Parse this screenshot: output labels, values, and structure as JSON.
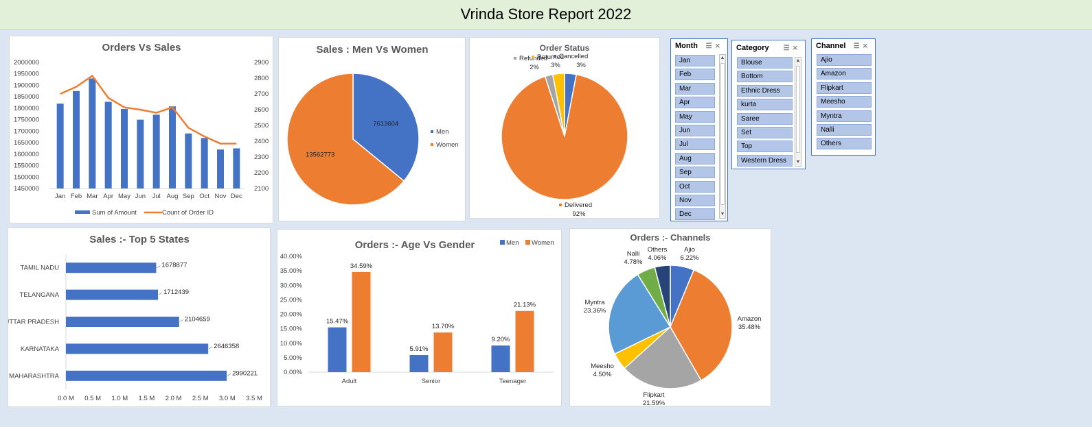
{
  "report_title": "Vrinda Store Report 2022",
  "chart_data": [
    {
      "id": "orders-vs-sales",
      "type": "bar+line",
      "title": "Orders Vs Sales",
      "categories": [
        "Jan",
        "Feb",
        "Mar",
        "Apr",
        "May",
        "Jun",
        "Jul",
        "Aug",
        "Sep",
        "Oct",
        "Nov",
        "Dec"
      ],
      "series": [
        {
          "name": "Sum of Amount",
          "type": "bar",
          "axis": "left",
          "color": "#4472c4",
          "values": [
            1820000,
            1875000,
            1930000,
            1828000,
            1797000,
            1750000,
            1772000,
            1808000,
            1690000,
            1670000,
            1620000,
            1625000
          ]
        },
        {
          "name": "Count of Order ID",
          "type": "line",
          "axis": "right",
          "color": "#ed7d31",
          "values": [
            2700,
            2745,
            2815,
            2675,
            2615,
            2600,
            2580,
            2615,
            2485,
            2430,
            2385,
            2385
          ]
        }
      ],
      "yticks_left": [
        "2000000",
        "1950000",
        "1900000",
        "1850000",
        "1800000",
        "1750000",
        "1700000",
        "1650000",
        "1600000",
        "1550000",
        "1500000",
        "1450000"
      ],
      "yticks_right": [
        "2900",
        "2800",
        "2700",
        "2600",
        "2500",
        "2400",
        "2300",
        "2200",
        "2100"
      ],
      "ylim_left": [
        1450000,
        2000000
      ],
      "ylim_right": [
        2100,
        2900
      ],
      "legend": "bottom"
    },
    {
      "id": "sales-men-women",
      "type": "pie",
      "title": "Sales : Men Vs Women",
      "slices": [
        {
          "name": "Men",
          "value": 7613604,
          "label": "7613604",
          "color": "#4472c4"
        },
        {
          "name": "Women",
          "value": 13562773,
          "label": "13562773",
          "color": "#ed7d31"
        }
      ],
      "legend": "right"
    },
    {
      "id": "order-status",
      "type": "pie",
      "title": "Order Status",
      "slices": [
        {
          "name": "Cancelled",
          "value": 3,
          "label": "3%",
          "color": "#4472c4"
        },
        {
          "name": "Delivered",
          "value": 92,
          "label": "92%",
          "color": "#ed7d31"
        },
        {
          "name": "Refunded",
          "value": 2,
          "label": "2%",
          "color": "#a5a5a5"
        },
        {
          "name": "Returned",
          "value": 3,
          "label": "3%",
          "color": "#ffc000"
        }
      ]
    },
    {
      "id": "top-5-states",
      "type": "bar",
      "orientation": "horizontal",
      "title": "Sales :- Top 5 States",
      "categories": [
        "TAMIL NADU",
        "TELANGANA",
        "UTTAR PRADESH",
        "KARNATAKA",
        "MAHARASHTRA"
      ],
      "values": [
        1678877,
        1712439,
        2104659,
        2646358,
        2990221
      ],
      "xticks": [
        "0.0 M",
        "0.5 M",
        "1.0 M",
        "1.5 M",
        "2.0 M",
        "2.5 M",
        "3.0 M",
        "3.5 M"
      ],
      "xlim": [
        0,
        3500000
      ],
      "color": "#4472c4"
    },
    {
      "id": "age-vs-gender",
      "type": "bar",
      "title": "Orders :- Age Vs Gender",
      "categories": [
        "Adult",
        "Senior",
        "Teenager"
      ],
      "series": [
        {
          "name": "Men",
          "color": "#4472c4",
          "values": [
            15.47,
            5.91,
            9.2
          ],
          "labels": [
            "15.47%",
            "5.91%",
            "9.20%"
          ]
        },
        {
          "name": "Women",
          "color": "#ed7d31",
          "values": [
            34.59,
            13.7,
            21.13
          ],
          "labels": [
            "34.59%",
            "13.70%",
            "21.13%"
          ]
        }
      ],
      "yticks": [
        "40.00%",
        "35.00%",
        "30.00%",
        "25.00%",
        "20.00%",
        "15.00%",
        "10.00%",
        "5.00%",
        "0.00%"
      ],
      "ylim": [
        0,
        40
      ],
      "legend": "top-right"
    },
    {
      "id": "orders-channels",
      "type": "pie",
      "title": "Orders :- Channels",
      "slices": [
        {
          "name": "Ajio",
          "value": 6.22,
          "label": "6.22%",
          "color": "#4472c4"
        },
        {
          "name": "Amazon",
          "value": 35.48,
          "label": "35.48%",
          "color": "#ed7d31"
        },
        {
          "name": "Flipkart",
          "value": 21.59,
          "label": "21.59%",
          "color": "#a5a5a5"
        },
        {
          "name": "Meesho",
          "value": 4.5,
          "label": "4.50%",
          "color": "#ffc000"
        },
        {
          "name": "Myntra",
          "value": 23.36,
          "label": "23.36%",
          "color": "#5b9bd5"
        },
        {
          "name": "Nalli",
          "value": 4.78,
          "label": "4.78%",
          "color": "#70ad47"
        },
        {
          "name": "Others",
          "value": 4.06,
          "label": "4.06%",
          "color": "#264478"
        }
      ]
    }
  ],
  "slicers": {
    "month": {
      "title": "Month",
      "items": [
        "Jan",
        "Feb",
        "Mar",
        "Apr",
        "May",
        "Jun",
        "Jul",
        "Aug",
        "Sep",
        "Oct",
        "Nov",
        "Dec"
      ]
    },
    "category": {
      "title": "Category",
      "items": [
        "Blouse",
        "Bottom",
        "Ethnic Dress",
        "kurta",
        "Saree",
        "Set",
        "Top",
        "Western Dress"
      ]
    },
    "channel": {
      "title": "Channel",
      "items": [
        "Ajio",
        "Amazon",
        "Flipkart",
        "Meesho",
        "Myntra",
        "Nalli",
        "Others"
      ]
    }
  }
}
